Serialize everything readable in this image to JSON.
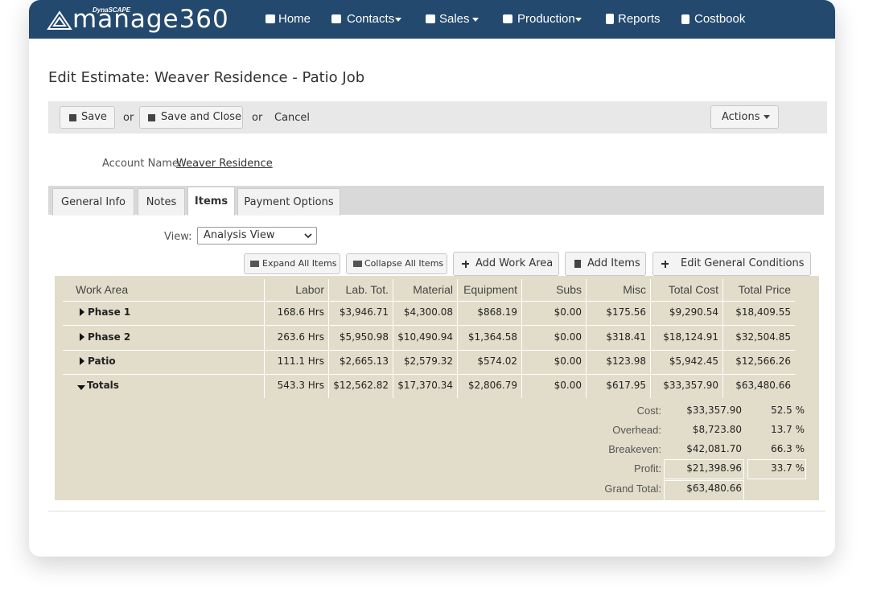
{
  "nav": {
    "brand_small": "DynaSCAPE",
    "brand": "manage360",
    "items": [
      "Home",
      "Contacts",
      "Sales",
      "Production",
      "Reports",
      "Costbook"
    ]
  },
  "page": {
    "title": "Edit Estimate: Weaver Residence - Patio Job"
  },
  "toolbar": {
    "save": "Save",
    "or_1": "or",
    "save_close": "Save and Close",
    "or_2": "or",
    "cancel": "Cancel",
    "actions": "Actions"
  },
  "account": {
    "label": "Account Name:",
    "value": "Weaver Residence"
  },
  "tabs": [
    "General Info",
    "Notes",
    "Items",
    "Payment Options"
  ],
  "view": {
    "label": "View:",
    "value": "Analysis View"
  },
  "buttons": [
    "Expand All Items",
    "Collapse All Items",
    "Add Work Area",
    "Add Items",
    "Edit General Conditions"
  ],
  "table": {
    "columns": [
      "Work Area",
      "Labor",
      "Lab. Tot.",
      "Material",
      "Equipment",
      "Subs",
      "Misc",
      "Total Cost",
      "Total Price"
    ],
    "rows": [
      [
        "Phase 1",
        "168.6 Hrs",
        "$3,946.71",
        "$4,300.08",
        "$868.19",
        "$0.00",
        "$175.56",
        "$9,290.54",
        "$18,409.55"
      ],
      [
        "Phase 2",
        "263.6 Hrs",
        "$5,950.98",
        "$10,490.94",
        "$1,364.58",
        "$0.00",
        "$318.41",
        "$18,124.91",
        "$32,504.85"
      ],
      [
        "Patio",
        "111.1 Hrs",
        "$2,665.13",
        "$2,579.32",
        "$574.02",
        "$0.00",
        "$123.98",
        "$5,942.45",
        "$12,566.26"
      ],
      [
        "Totals",
        "543.3 Hrs",
        "$12,562.82",
        "$17,370.34",
        "$2,806.79",
        "$0.00",
        "$617.95",
        "$33,357.90",
        "$63,480.66"
      ]
    ]
  },
  "summary": [
    {
      "label": "Cost:",
      "amount": "$33,357.90",
      "percent": "52.5 %"
    },
    {
      "label": "Overhead:",
      "amount": "$8,723.80",
      "percent": "13.7 %"
    },
    {
      "label": "Breakeven:",
      "amount": "$42,081.70",
      "percent": "66.3 %"
    },
    {
      "label": "Profit:",
      "amount": "$21,398.96",
      "percent": "33.7 %"
    },
    {
      "label": "Grand Total:",
      "amount": "$63,480.66"
    }
  ]
}
